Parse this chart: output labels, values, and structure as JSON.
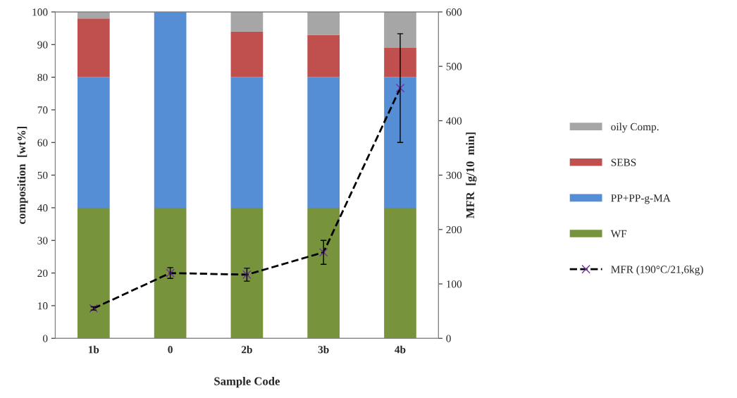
{
  "chart_data": {
    "type": "bar",
    "stacked": true,
    "xlabel": "Sample Code",
    "ylabel": "composition  [wt%]",
    "y2label": "MFR  [g/10  min]",
    "categories": [
      "1b",
      "0",
      "2b",
      "3b",
      "4b"
    ],
    "series": [
      {
        "name": "WF",
        "color": "#77933c",
        "values": [
          40,
          40,
          40,
          40,
          40
        ]
      },
      {
        "name": "PP+PP-g-MA",
        "color": "#558ed5",
        "values": [
          40,
          60,
          40,
          40,
          40
        ]
      },
      {
        "name": "SEBS",
        "color": "#c0504d",
        "values": [
          18,
          null,
          14,
          13,
          9
        ]
      },
      {
        "name": "oily Comp.",
        "color": "#a6a6a6",
        "values": [
          2,
          null,
          6,
          7,
          11
        ]
      },
      {
        "name": "MFR (190°C/21,6kg)",
        "type": "line",
        "axis": "y2",
        "color": "#000000",
        "marker": "cross",
        "line_style": "dashed",
        "values": [
          55,
          120,
          117,
          158,
          460
        ],
        "errors": [
          3,
          10,
          12,
          22,
          100
        ]
      }
    ],
    "ylim": [
      0,
      100
    ],
    "yticks": [
      0,
      10,
      20,
      30,
      40,
      50,
      60,
      70,
      80,
      90,
      100
    ],
    "y2lim": [
      0,
      600
    ],
    "y2ticks": [
      0,
      100,
      200,
      300,
      400,
      500,
      600
    ],
    "grid": false,
    "legend": "right"
  }
}
